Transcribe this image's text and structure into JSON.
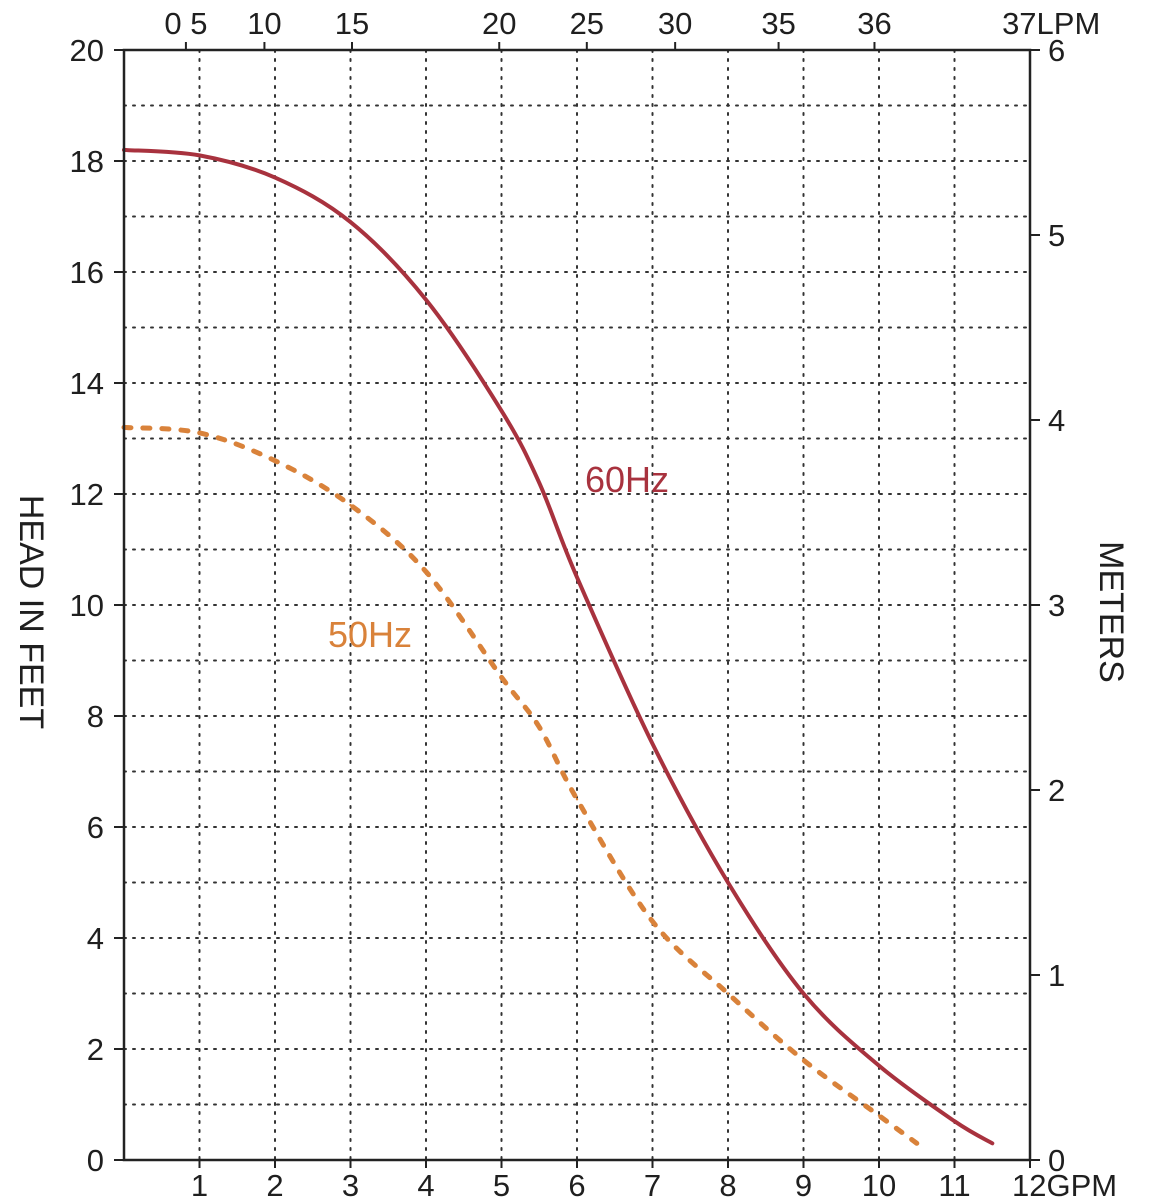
{
  "chart_data": {
    "type": "line",
    "title": "",
    "grid": true,
    "axes": {
      "x_bottom": {
        "label": "GPM",
        "ticks": [
          "1",
          "2",
          "3",
          "4",
          "5",
          "6",
          "7",
          "8",
          "9",
          "10",
          "11",
          "12GPM"
        ],
        "range": [
          0,
          12
        ]
      },
      "x_top": {
        "label": "LPM",
        "ticks": [
          "0 5",
          "10",
          "15",
          "20",
          "25",
          "30",
          "35",
          "36",
          "37LPM"
        ]
      },
      "y_left": {
        "label": "HEAD IN FEET",
        "ticks": [
          "0",
          "2",
          "4",
          "6",
          "8",
          "10",
          "12",
          "14",
          "16",
          "18",
          "20"
        ],
        "range": [
          0,
          20
        ]
      },
      "y_right": {
        "label": "METERS",
        "ticks": [
          "0",
          "1",
          "2",
          "3",
          "4",
          "5",
          "6"
        ],
        "range": [
          0,
          6
        ]
      }
    },
    "series": [
      {
        "name": "60Hz",
        "style": "solid",
        "color": "#a8323e",
        "x": [
          0,
          1,
          2,
          3,
          4,
          5,
          5.5,
          6,
          7,
          8,
          9,
          10,
          11,
          11.5
        ],
        "y": [
          18.2,
          18.1,
          17.7,
          16.9,
          15.5,
          13.5,
          12.2,
          10.5,
          7.5,
          5.0,
          3.0,
          1.7,
          0.7,
          0.3
        ]
      },
      {
        "name": "50Hz",
        "style": "dotted",
        "color": "#d9823a",
        "x": [
          0,
          1,
          2,
          3,
          4,
          5,
          5.5,
          6,
          7,
          8,
          9,
          10,
          10.5
        ],
        "y": [
          13.2,
          13.1,
          12.6,
          11.8,
          10.6,
          8.7,
          7.8,
          6.5,
          4.3,
          3.0,
          1.8,
          0.8,
          0.3
        ]
      }
    ],
    "annotations": [
      {
        "text": "60Hz",
        "color": "#a8323e"
      },
      {
        "text": "50Hz",
        "color": "#d9823a"
      }
    ]
  }
}
